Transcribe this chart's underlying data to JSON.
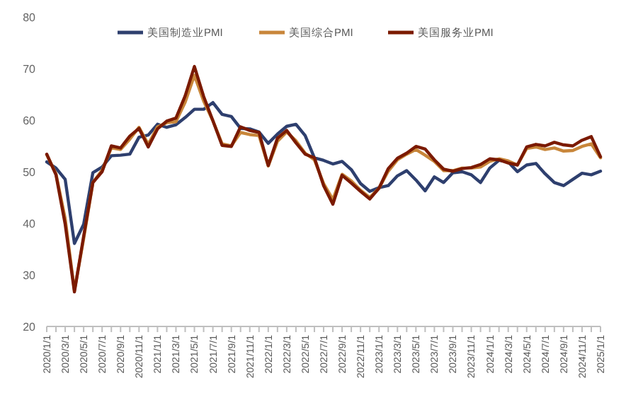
{
  "chart_data": {
    "type": "line",
    "categories": [
      "2020/1/1",
      null,
      "2020/3/1",
      null,
      "2020/5/1",
      null,
      "2020/7/1",
      null,
      "2020/9/1",
      null,
      "2020/11/1",
      null,
      "2021/1/1",
      null,
      "2021/3/1",
      null,
      "2021/5/1",
      null,
      "2021/7/1",
      null,
      "2021/9/1",
      null,
      "2021/11/1",
      null,
      "2022/1/1",
      null,
      "2022/3/1",
      null,
      "2022/5/1",
      null,
      "2022/7/1",
      null,
      "2022/9/1",
      null,
      "2022/11/1",
      null,
      "2023/1/1",
      null,
      "2023/3/1",
      null,
      "2023/5/1",
      null,
      "2023/7/1",
      null,
      "2023/9/1",
      null,
      "2023/11/1",
      null,
      "2024/1/1",
      null,
      "2024/3/1",
      null,
      "2024/5/1",
      null,
      "2024/7/1",
      null,
      "2024/9/1",
      null,
      "2024/11/1",
      null,
      "2025/1/1"
    ],
    "series": [
      {
        "name": "美国制造业PMI",
        "color": "#2e3f6e",
        "values": [
          51.9,
          50.7,
          48.5,
          36.1,
          39.8,
          49.8,
          50.9,
          53.1,
          53.2,
          53.4,
          56.7,
          57.1,
          59.2,
          58.6,
          59.1,
          60.5,
          62.1,
          62.1,
          63.4,
          61.1,
          60.7,
          58.4,
          58.3,
          57.7,
          55.5,
          57.3,
          58.8,
          59.2,
          57.0,
          52.7,
          52.2,
          51.5,
          52.0,
          50.4,
          47.7,
          46.2,
          46.9,
          47.3,
          49.2,
          50.2,
          48.4,
          46.3,
          49.0,
          47.9,
          49.8,
          50.0,
          49.4,
          47.9,
          50.7,
          52.2,
          51.9,
          50.0,
          51.3,
          51.6,
          49.6,
          47.9,
          47.3,
          48.5,
          49.7,
          49.4,
          50.1
        ]
      },
      {
        "name": "美国综合PMI",
        "color": "#c8863a",
        "values": [
          53.3,
          49.6,
          40.9,
          27.0,
          37.0,
          47.9,
          50.3,
          54.6,
          54.3,
          56.3,
          58.6,
          55.3,
          58.7,
          59.5,
          59.7,
          63.5,
          68.7,
          63.7,
          59.9,
          55.4,
          55.0,
          57.6,
          57.2,
          57.0,
          51.1,
          55.9,
          57.7,
          56.0,
          53.6,
          52.3,
          47.7,
          44.6,
          49.5,
          48.2,
          46.4,
          45.0,
          46.8,
          50.1,
          52.3,
          53.4,
          54.3,
          53.2,
          52.0,
          50.2,
          50.2,
          50.7,
          50.7,
          50.9,
          52.0,
          52.5,
          52.1,
          51.3,
          54.5,
          54.8,
          54.3,
          54.6,
          54.0,
          54.1,
          54.9,
          55.4,
          52.7
        ]
      },
      {
        "name": "美国服务业PMI",
        "color": "#7b1a00",
        "values": [
          53.4,
          49.4,
          39.8,
          26.7,
          37.5,
          47.9,
          50.0,
          55.0,
          54.6,
          56.9,
          58.4,
          54.8,
          58.3,
          59.8,
          60.4,
          64.7,
          70.4,
          64.6,
          59.9,
          55.1,
          54.9,
          58.7,
          58.0,
          57.6,
          51.2,
          56.5,
          58.0,
          55.6,
          53.4,
          52.7,
          47.3,
          43.7,
          49.3,
          47.8,
          46.2,
          44.7,
          46.8,
          50.6,
          52.6,
          53.6,
          54.9,
          54.4,
          52.3,
          50.5,
          50.1,
          50.6,
          50.8,
          51.4,
          52.5,
          52.3,
          51.7,
          51.3,
          54.8,
          55.3,
          55.0,
          55.7,
          55.2,
          55.0,
          56.1,
          56.8,
          52.9
        ]
      }
    ],
    "ylim": [
      20,
      80
    ],
    "yticks": [
      20,
      30,
      40,
      50,
      60,
      70,
      80
    ],
    "grid": false,
    "legend": "top"
  }
}
